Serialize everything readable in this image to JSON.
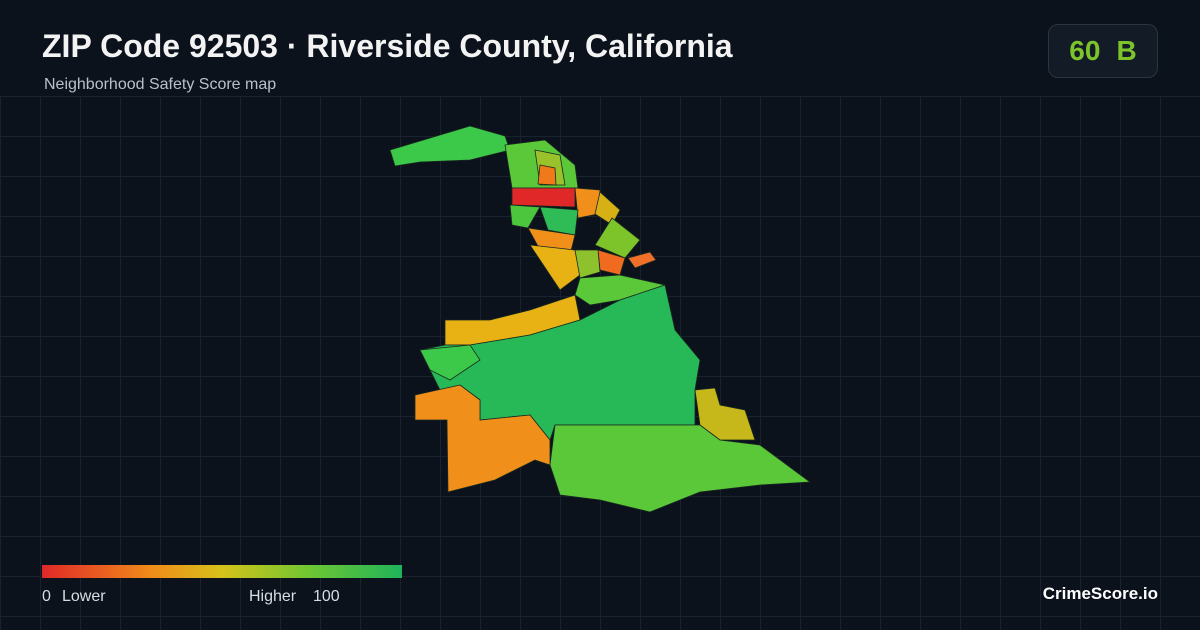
{
  "header": {
    "title": "ZIP Code 92503 · Riverside County, California",
    "subtitle": "Neighborhood Safety Score map"
  },
  "score": {
    "value": 60,
    "grade": "B"
  },
  "legend": {
    "min": 0,
    "min_label": "Lower",
    "max_label": "Higher",
    "max": 100
  },
  "brand": "CrimeScore.io"
}
